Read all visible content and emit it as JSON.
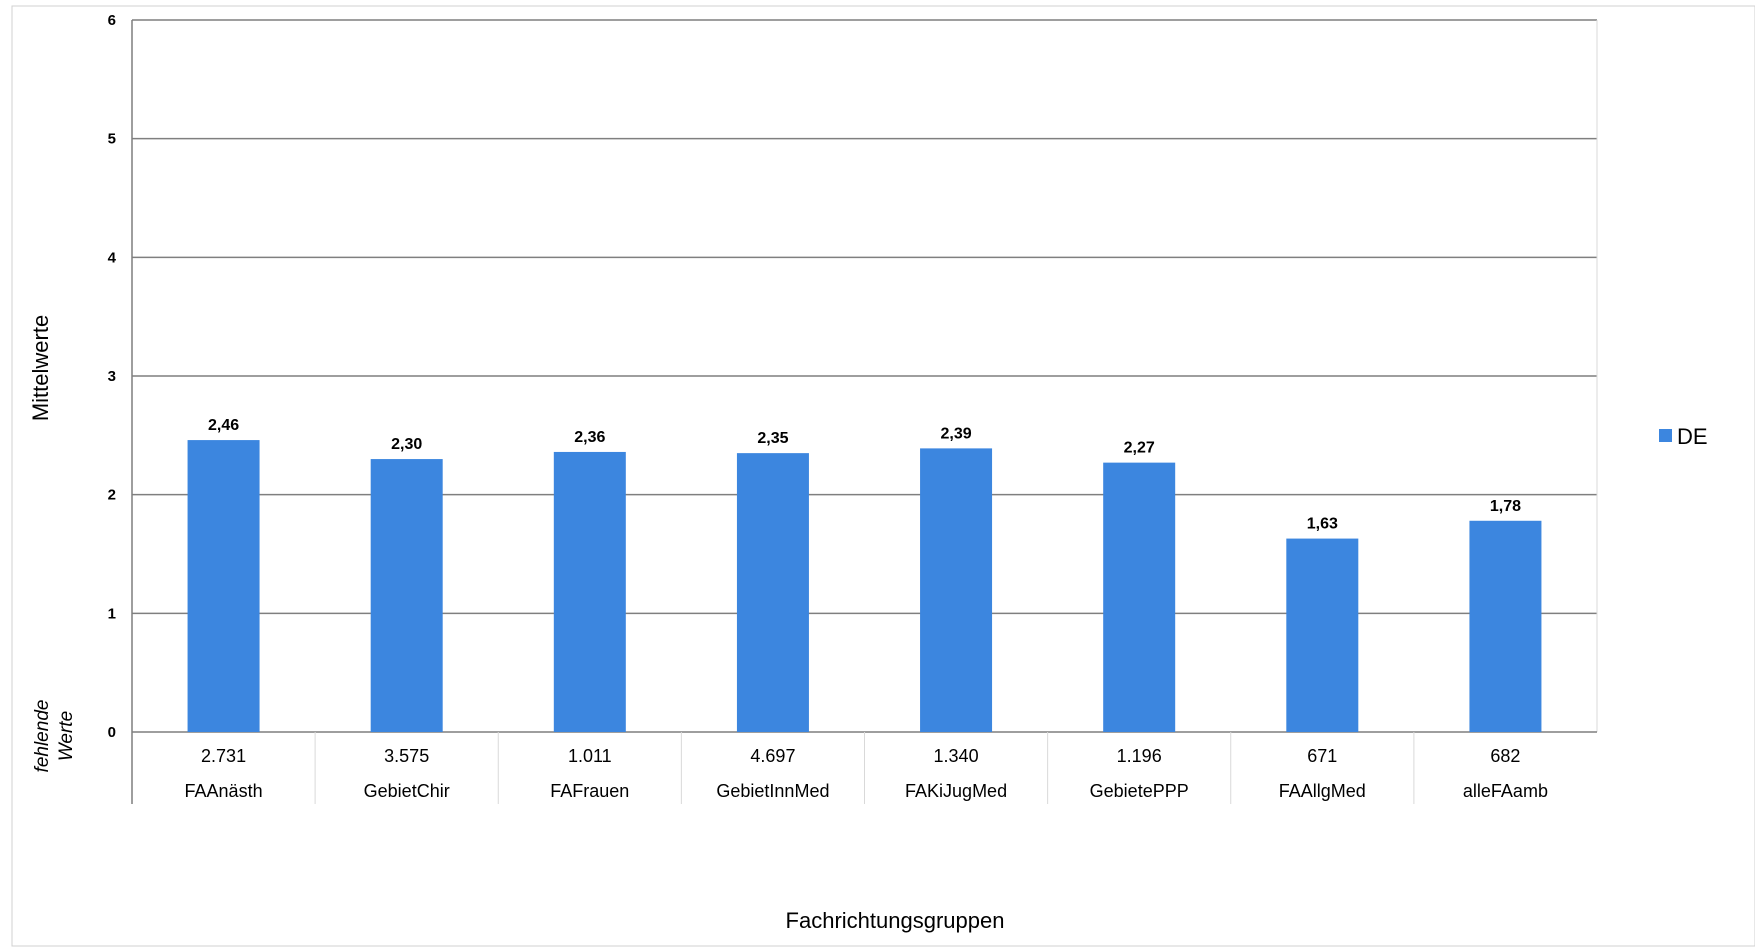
{
  "chart_data": {
    "type": "bar",
    "xlabel": "Fachrichtungsgruppen",
    "ylabel": "Mittelwerte",
    "missing_label_line1": "fehlende",
    "missing_label_line2": "Werte",
    "ylim": [
      0,
      6
    ],
    "yticks": [
      "0",
      "1",
      "2",
      "3",
      "4",
      "5",
      "6"
    ],
    "grid": true,
    "legend_position": "right",
    "categories": [
      "FAAnästh",
      "GebietChir",
      "FAFrauen",
      "GebietInnMed",
      "FAKiJugMed",
      "GebietePPP",
      "FAAllgMed",
      "alleFAamb"
    ],
    "missing_values": [
      "2.731",
      "3.575",
      "1.011",
      "4.697",
      "1.340",
      "1.196",
      "671",
      "682"
    ],
    "series": [
      {
        "name": "DE",
        "color": "#3c86df",
        "values": [
          2.46,
          2.3,
          2.36,
          2.35,
          2.39,
          2.27,
          1.63,
          1.78
        ],
        "labels": [
          "2,46",
          "2,30",
          "2,36",
          "2,35",
          "2,39",
          "2,27",
          "1,63",
          "1,78"
        ]
      }
    ]
  }
}
